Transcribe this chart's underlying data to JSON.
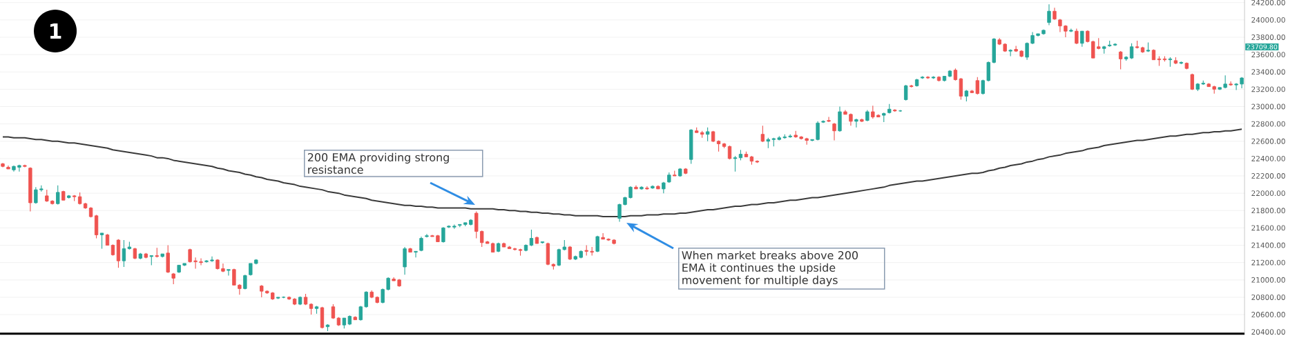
{
  "chart_data": {
    "type": "candlestick",
    "categories": [
      null,
      null,
      null,
      null,
      null,
      null,
      null,
      null,
      null,
      null,
      null,
      null,
      null,
      null,
      null,
      null,
      null,
      null,
      null,
      null,
      null,
      null,
      null,
      null,
      null,
      null,
      null,
      null,
      null,
      null,
      null,
      null,
      null,
      null,
      null,
      null,
      null,
      null,
      null,
      null,
      null,
      null,
      null,
      null,
      null,
      null,
      null,
      null,
      null,
      null,
      null,
      null,
      null,
      null,
      null,
      null,
      null,
      null,
      null,
      null,
      null,
      null,
      null,
      null,
      null,
      null,
      null,
      null,
      null,
      null,
      null,
      null,
      null,
      null,
      null,
      null,
      null,
      null,
      null,
      null,
      null,
      null,
      null,
      null,
      null,
      null,
      null,
      null,
      null,
      null,
      null,
      null,
      null,
      null,
      null,
      null,
      null,
      null,
      null,
      null,
      null,
      null,
      null,
      null,
      null,
      null,
      null,
      null,
      null,
      null,
      null,
      null,
      null,
      null,
      null,
      null,
      null,
      null,
      null,
      null,
      null,
      null,
      null,
      null,
      null,
      null,
      null,
      null,
      null,
      null,
      null,
      null,
      null,
      null,
      null,
      null,
      null,
      null,
      null,
      null,
      null,
      null,
      null,
      null,
      null,
      null,
      null,
      null,
      null,
      null,
      null,
      null,
      null,
      null,
      null,
      null,
      null,
      null,
      null,
      null,
      null,
      null,
      null,
      null,
      null,
      null,
      null,
      null,
      null,
      null,
      null,
      null,
      null,
      null,
      null,
      null,
      null,
      null,
      null,
      null,
      null,
      null,
      null,
      null,
      null,
      null,
      null,
      null,
      null,
      null,
      null,
      null,
      null,
      null,
      null,
      null,
      null,
      null,
      null,
      null,
      null,
      null,
      null,
      null,
      null,
      null,
      null,
      null,
      null,
      null,
      null,
      null,
      null,
      null,
      null,
      null,
      null,
      null,
      null,
      null,
      null,
      null,
      null,
      null,
      null,
      null
    ],
    "ohlc": [
      [
        22340,
        22350,
        22300,
        22310
      ],
      [
        22300,
        22320,
        22280,
        22280
      ],
      [
        22270,
        22320,
        22250,
        22310
      ],
      [
        22300,
        22330,
        22250,
        22320
      ],
      [
        22320,
        22330,
        22300,
        22310
      ],
      [
        22290,
        22300,
        21790,
        21890
      ],
      [
        21890,
        22070,
        21880,
        22040
      ],
      [
        22040,
        22090,
        22020,
        22050
      ],
      [
        21970,
        22040,
        21900,
        21910
      ],
      [
        21910,
        21920,
        21870,
        21880
      ],
      [
        21880,
        22090,
        21870,
        22010
      ],
      [
        22020,
        22030,
        21920,
        21920
      ],
      [
        21950,
        21980,
        21940,
        21970
      ],
      [
        21970,
        21980,
        21910,
        21960
      ],
      [
        21960,
        22010,
        21870,
        21880
      ],
      [
        21880,
        21890,
        21820,
        21830
      ],
      [
        21830,
        21840,
        21720,
        21730
      ],
      [
        21740,
        21750,
        21480,
        21520
      ],
      [
        21520,
        21540,
        21360,
        21540
      ],
      [
        21520,
        21530,
        21400,
        21400
      ],
      [
        21400,
        21410,
        21280,
        21290
      ],
      [
        21460,
        21470,
        21140,
        21220
      ],
      [
        21220,
        21460,
        21150,
        21360
      ],
      [
        21360,
        21440,
        21350,
        21380
      ],
      [
        21360,
        21370,
        21240,
        21250
      ],
      [
        21250,
        21310,
        21240,
        21300
      ],
      [
        21300,
        21310,
        21250,
        21260
      ],
      [
        21270,
        21280,
        21170,
        21280
      ],
      [
        21280,
        21370,
        21260,
        21270
      ],
      [
        21270,
        21300,
        21260,
        21300
      ],
      [
        21310,
        21400,
        21080,
        21090
      ],
      [
        21070,
        21080,
        20950,
        21020
      ],
      [
        21090,
        21170,
        21080,
        21170
      ],
      [
        21170,
        21190,
        21160,
        21190
      ],
      [
        21350,
        21360,
        21200,
        21210
      ],
      [
        21220,
        21260,
        21130,
        21210
      ],
      [
        21210,
        21250,
        21170,
        21200
      ],
      [
        21210,
        21230,
        21200,
        21220
      ],
      [
        21220,
        21270,
        21210,
        21230
      ],
      [
        21230,
        21240,
        21120,
        21130
      ],
      [
        21130,
        21190,
        21090,
        21100
      ],
      [
        21110,
        21120,
        21050,
        21120
      ],
      [
        21120,
        21130,
        20940,
        20940
      ],
      [
        20940,
        20950,
        20830,
        20900
      ],
      [
        20900,
        21060,
        20890,
        21050
      ],
      [
        21060,
        21190,
        21050,
        21190
      ],
      [
        21190,
        21240,
        21180,
        21230
      ],
      [
        20930,
        20940,
        20800,
        20870
      ],
      [
        20870,
        20880,
        20840,
        20850
      ],
      [
        20850,
        20860,
        20770,
        20780
      ],
      [
        20790,
        20800,
        20780,
        20800
      ],
      [
        20800,
        20810,
        20790,
        20800
      ],
      [
        20800,
        20810,
        20770,
        20780
      ],
      [
        20780,
        20790,
        20710,
        20720
      ],
      [
        20720,
        20810,
        20710,
        20800
      ],
      [
        20800,
        20840,
        20710,
        20720
      ],
      [
        20720,
        20730,
        20600,
        20670
      ],
      [
        20670,
        20700,
        20610,
        20690
      ],
      [
        20680,
        20690,
        20440,
        20450
      ],
      [
        20460,
        20490,
        20410,
        20480
      ],
      [
        20690,
        20720,
        20550,
        20560
      ],
      [
        20560,
        20570,
        20470,
        20480
      ],
      [
        20480,
        20560,
        20440,
        20560
      ],
      [
        20490,
        20590,
        20480,
        20580
      ],
      [
        20570,
        20580,
        20540,
        20540
      ],
      [
        20540,
        20700,
        20530,
        20690
      ],
      [
        20690,
        20870,
        20680,
        20860
      ],
      [
        20860,
        20880,
        20790,
        20800
      ],
      [
        20800,
        20810,
        20730,
        20740
      ],
      [
        20740,
        20900,
        20730,
        20890
      ],
      [
        20890,
        21030,
        20880,
        21020
      ],
      [
        21010,
        21030,
        20990,
        20990
      ],
      [
        21000,
        21010,
        20920,
        20930
      ],
      [
        21150,
        21380,
        21060,
        21360
      ],
      [
        21360,
        21370,
        21320,
        21320
      ],
      [
        21320,
        21330,
        21260,
        21330
      ],
      [
        21340,
        21500,
        21330,
        21480
      ],
      [
        21500,
        21530,
        21490,
        21510
      ],
      [
        21510,
        21520,
        21500,
        21500
      ],
      [
        21510,
        21520,
        21440,
        21440
      ],
      [
        21440,
        21610,
        21430,
        21600
      ],
      [
        21610,
        21630,
        21600,
        21620
      ],
      [
        21610,
        21640,
        21590,
        21620
      ],
      [
        21630,
        21640,
        21610,
        21640
      ],
      [
        21640,
        21660,
        21620,
        21660
      ],
      [
        21640,
        21700,
        21630,
        21690
      ],
      [
        21770,
        21790,
        21480,
        21560
      ],
      [
        21560,
        21570,
        21380,
        21430
      ],
      [
        21440,
        21450,
        21420,
        21420
      ],
      [
        21420,
        21430,
        21320,
        21320
      ],
      [
        21330,
        21430,
        21320,
        21420
      ],
      [
        21420,
        21430,
        21380,
        21380
      ],
      [
        21380,
        21390,
        21360,
        21360
      ],
      [
        21360,
        21370,
        21340,
        21350
      ],
      [
        21350,
        21360,
        21280,
        21340
      ],
      [
        21340,
        21410,
        21330,
        21400
      ],
      [
        21400,
        21580,
        21390,
        21480
      ],
      [
        21490,
        21500,
        21420,
        21420
      ],
      [
        21430,
        21440,
        21420,
        21440
      ],
      [
        21420,
        21430,
        21170,
        21180
      ],
      [
        21180,
        21190,
        21120,
        21160
      ],
      [
        21170,
        21360,
        21160,
        21350
      ],
      [
        21350,
        21460,
        21340,
        21380
      ],
      [
        21380,
        21390,
        21230,
        21240
      ],
      [
        21240,
        21280,
        21230,
        21270
      ],
      [
        21260,
        21340,
        21250,
        21330
      ],
      [
        21340,
        21400,
        21280,
        21330
      ],
      [
        21330,
        21380,
        21280,
        21320
      ],
      [
        21330,
        21510,
        21320,
        21500
      ],
      [
        21490,
        21540,
        21470,
        21470
      ],
      [
        21470,
        21480,
        21450,
        21460
      ],
      [
        21460,
        21470,
        21410,
        21420
      ],
      [
        21710,
        21880,
        21670,
        21870
      ],
      [
        21870,
        21960,
        21860,
        21950
      ],
      [
        21950,
        22080,
        21940,
        22070
      ],
      [
        22070,
        22090,
        22050,
        22050
      ],
      [
        22050,
        22080,
        22040,
        22070
      ],
      [
        22060,
        22080,
        22040,
        22050
      ],
      [
        22060,
        22090,
        22050,
        22080
      ],
      [
        22080,
        22090,
        22050,
        22050
      ],
      [
        22050,
        22130,
        22000,
        22120
      ],
      [
        22130,
        22240,
        22120,
        22210
      ],
      [
        22210,
        22260,
        22200,
        22200
      ],
      [
        22200,
        22290,
        22190,
        22280
      ],
      [
        22280,
        22290,
        22220,
        22230
      ],
      [
        22390,
        22740,
        22340,
        22730
      ],
      [
        22720,
        22760,
        22700,
        22700
      ],
      [
        22700,
        22720,
        22640,
        22680
      ],
      [
        22680,
        22760,
        22600,
        22710
      ],
      [
        22710,
        22720,
        22590,
        22600
      ],
      [
        22600,
        22610,
        22480,
        22570
      ],
      [
        22570,
        22580,
        22520,
        22540
      ],
      [
        22540,
        22550,
        22390,
        22400
      ],
      [
        22400,
        22430,
        22250,
        22410
      ],
      [
        22410,
        22500,
        22380,
        22450
      ],
      [
        22450,
        22480,
        22420,
        22420
      ],
      [
        22420,
        22430,
        22330,
        22370
      ],
      [
        22370,
        22380,
        22350,
        22360
      ],
      [
        22680,
        22780,
        22590,
        22600
      ],
      [
        22600,
        22640,
        22520,
        22620
      ],
      [
        22620,
        22640,
        22540,
        22630
      ],
      [
        22620,
        22660,
        22610,
        22640
      ],
      [
        22640,
        22680,
        22630,
        22650
      ],
      [
        22650,
        22680,
        22640,
        22660
      ],
      [
        22670,
        22720,
        22640,
        22650
      ],
      [
        22650,
        22660,
        22620,
        22630
      ],
      [
        22630,
        22640,
        22560,
        22610
      ],
      [
        22610,
        22620,
        22600,
        22620
      ],
      [
        22620,
        22830,
        22610,
        22810
      ],
      [
        22820,
        22840,
        22810,
        22830
      ],
      [
        22840,
        22880,
        22820,
        22830
      ],
      [
        22800,
        22810,
        22610,
        22720
      ],
      [
        22720,
        23000,
        22710,
        22940
      ],
      [
        22940,
        22960,
        22910,
        22910
      ],
      [
        22910,
        22920,
        22780,
        22830
      ],
      [
        22830,
        22860,
        22760,
        22850
      ],
      [
        22850,
        22860,
        22820,
        22830
      ],
      [
        22840,
        22960,
        22830,
        22940
      ],
      [
        22940,
        23010,
        22860,
        22880
      ],
      [
        22900,
        22910,
        22880,
        22880
      ],
      [
        22900,
        22930,
        22820,
        22920
      ],
      [
        22930,
        23030,
        22920,
        22970
      ],
      [
        22960,
        22970,
        22940,
        22950
      ],
      [
        22950,
        22960,
        22940,
        22950
      ],
      [
        23080,
        23250,
        23070,
        23240
      ],
      [
        23240,
        23250,
        23220,
        23230
      ],
      [
        23240,
        23320,
        23230,
        23310
      ],
      [
        23330,
        23350,
        23320,
        23340
      ],
      [
        23340,
        23350,
        23320,
        23330
      ],
      [
        23330,
        23350,
        23320,
        23340
      ],
      [
        23340,
        23350,
        23290,
        23300
      ],
      [
        23300,
        23350,
        23290,
        23350
      ],
      [
        23350,
        23420,
        23340,
        23410
      ],
      [
        23420,
        23440,
        23300,
        23310
      ],
      [
        23320,
        23330,
        23080,
        23120
      ],
      [
        23120,
        23190,
        23060,
        23180
      ],
      [
        23180,
        23190,
        23160,
        23160
      ],
      [
        23300,
        23340,
        23140,
        23150
      ],
      [
        23150,
        23310,
        23140,
        23300
      ],
      [
        23300,
        23520,
        23290,
        23510
      ],
      [
        23510,
        23790,
        23500,
        23780
      ],
      [
        23770,
        23790,
        23710,
        23720
      ],
      [
        23720,
        23730,
        23630,
        23640
      ],
      [
        23640,
        23660,
        23580,
        23650
      ],
      [
        23660,
        23700,
        23630,
        23640
      ],
      [
        23640,
        23650,
        23570,
        23580
      ],
      [
        23570,
        23740,
        23540,
        23730
      ],
      [
        23730,
        23860,
        23720,
        23820
      ],
      [
        23820,
        23840,
        23810,
        23840
      ],
      [
        23840,
        23890,
        23830,
        23880
      ],
      [
        23970,
        24180,
        23940,
        24100
      ],
      [
        24100,
        24140,
        24000,
        24010
      ],
      [
        24000,
        24010,
        23860,
        23930
      ],
      [
        23930,
        23940,
        23800,
        23870
      ],
      [
        23870,
        23900,
        23860,
        23880
      ],
      [
        23870,
        23900,
        23720,
        23730
      ],
      [
        23730,
        23870,
        23690,
        23870
      ],
      [
        23870,
        23880,
        23740,
        23750
      ],
      [
        23750,
        23760,
        23560,
        23560
      ],
      [
        23690,
        23790,
        23660,
        23670
      ],
      [
        23670,
        23700,
        23610,
        23690
      ],
      [
        23700,
        23760,
        23690,
        23710
      ],
      [
        23710,
        23730,
        23700,
        23720
      ],
      [
        23630,
        23640,
        23430,
        23550
      ],
      [
        23550,
        23580,
        23530,
        23570
      ],
      [
        23560,
        23730,
        23550,
        23690
      ],
      [
        23690,
        23760,
        23670,
        23680
      ],
      [
        23680,
        23690,
        23620,
        23630
      ],
      [
        23640,
        23740,
        23630,
        23650
      ],
      [
        23650,
        23660,
        23540,
        23540
      ],
      [
        23550,
        23580,
        23470,
        23540
      ],
      [
        23550,
        23580,
        23520,
        23540
      ],
      [
        23540,
        23570,
        23460,
        23550
      ],
      [
        23530,
        23570,
        23490,
        23500
      ],
      [
        23500,
        23520,
        23490,
        23510
      ],
      [
        23500,
        23510,
        23430,
        23440
      ],
      [
        23370,
        23380,
        23190,
        23200
      ],
      [
        23200,
        23270,
        23180,
        23260
      ],
      [
        23260,
        23300,
        23250,
        23270
      ],
      [
        23260,
        23270,
        23230,
        23230
      ],
      [
        23230,
        23240,
        23150,
        23200
      ],
      [
        23200,
        23220,
        23190,
        23220
      ],
      [
        23220,
        23360,
        23210,
        23260
      ],
      [
        23260,
        23290,
        23240,
        23250
      ],
      [
        23250,
        23270,
        23190,
        23260
      ],
      [
        23260,
        23340,
        23210,
        23330
      ]
    ],
    "colors": [
      "#ef5350",
      "#ef5350",
      "#26a69a",
      "#26a69a",
      "#ef5350",
      "#ef5350",
      "#26a69a",
      "#26a69a",
      "#ef5350",
      "#ef5350",
      "#26a69a",
      "#ef5350",
      "#26a69a",
      "#ef5350",
      "#ef5350",
      "#ef5350",
      "#ef5350",
      "#ef5350",
      "#26a69a",
      "#ef5350",
      "#ef5350",
      "#ef5350",
      "#26a69a",
      "#26a69a",
      "#ef5350",
      "#26a69a",
      "#ef5350",
      "#26a69a",
      "#ef5350",
      "#26a69a",
      "#ef5350",
      "#ef5350",
      "#26a69a",
      "#26a69a",
      "#ef5350",
      "#ef5350",
      "#ef5350",
      "#26a69a",
      "#26a69a",
      "#ef5350",
      "#ef5350",
      "#26a69a",
      "#ef5350",
      "#ef5350",
      "#26a69a",
      "#26a69a",
      "#26a69a",
      "#ef5350",
      "#ef5350",
      "#ef5350",
      "#26a69a",
      "#26a69a",
      "#ef5350",
      "#ef5350",
      "#26a69a",
      "#ef5350",
      "#ef5350",
      "#26a69a",
      "#ef5350",
      "#26a69a",
      "#ef5350",
      "#ef5350",
      "#26a69a",
      "#26a69a",
      "#ef5350",
      "#26a69a",
      "#26a69a",
      "#ef5350",
      "#ef5350",
      "#26a69a",
      "#26a69a",
      "#ef5350",
      "#ef5350",
      "#26a69a",
      "#ef5350",
      "#26a69a",
      "#26a69a",
      "#26a69a",
      "#ef5350",
      "#ef5350",
      "#26a69a",
      "#26a69a",
      "#26a69a",
      "#26a69a",
      "#26a69a",
      "#26a69a",
      "#ef5350",
      "#ef5350",
      "#ef5350",
      "#ef5350",
      "#26a69a",
      "#ef5350",
      "#ef5350",
      "#ef5350",
      "#ef5350",
      "#26a69a",
      "#26a69a",
      "#ef5350",
      "#26a69a",
      "#ef5350",
      "#ef5350",
      "#26a69a",
      "#26a69a",
      "#ef5350",
      "#26a69a",
      "#26a69a",
      "#ef5350",
      "#ef5350",
      "#26a69a",
      "#ef5350",
      "#ef5350",
      "#ef5350",
      "#26a69a",
      "#26a69a",
      "#26a69a",
      "#ef5350",
      "#26a69a",
      "#ef5350",
      "#26a69a",
      "#ef5350",
      "#26a69a",
      "#26a69a",
      "#ef5350",
      "#26a69a",
      "#ef5350",
      "#26a69a",
      "#ef5350",
      "#ef5350",
      "#26a69a",
      "#ef5350",
      "#ef5350",
      "#ef5350",
      "#ef5350",
      "#26a69a",
      "#26a69a",
      "#ef5350",
      "#ef5350",
      "#ef5350",
      "#ef5350",
      "#26a69a",
      "#26a69a",
      "#26a69a",
      "#26a69a",
      "#26a69a",
      "#ef5350",
      "#ef5350",
      "#ef5350",
      "#26a69a",
      "#26a69a",
      "#26a69a",
      "#ef5350",
      "#ef5350",
      "#26a69a",
      "#ef5350",
      "#ef5350",
      "#26a69a",
      "#ef5350",
      "#26a69a",
      "#ef5350",
      "#ef5350",
      "#26a69a",
      "#26a69a",
      "#ef5350",
      "#26a69a",
      "#26a69a",
      "#ef5350",
      "#26a69a",
      "#26a69a",
      "#ef5350",
      "#26a69a",
      "#ef5350",
      "#26a69a",
      "#26a69a",
      "#ef5350",
      "#ef5350",
      "#26a69a",
      "#ef5350",
      "#ef5350",
      "#26a69a",
      "#26a69a",
      "#26a69a",
      "#ef5350",
      "#ef5350",
      "#26a69a",
      "#ef5350",
      "#ef5350",
      "#26a69a",
      "#26a69a",
      "#26a69a",
      "#26a69a",
      "#26a69a",
      "#ef5350",
      "#ef5350",
      "#ef5350",
      "#26a69a",
      "#ef5350",
      "#26a69a",
      "#ef5350",
      "#ef5350",
      "#ef5350",
      "#26a69a",
      "#26a69a",
      "#26a69a",
      "#ef5350",
      "#26a69a",
      "#26a69a",
      "#ef5350",
      "#ef5350",
      "#26a69a",
      "#ef5350",
      "#ef5350",
      "#ef5350",
      "#26a69a",
      "#ef5350",
      "#26a69a",
      "#ef5350",
      "#ef5350",
      "#26a69a",
      "#26a69a",
      "#ef5350",
      "#ef5350",
      "#26a69a",
      "#26a69a",
      "#ef5350",
      "#26a69a",
      "#26a69a"
    ],
    "series": [
      {
        "type": "line",
        "color": "#3a3a3a",
        "values": [
          22650,
          22650,
          22640,
          22640,
          22640,
          22630,
          22620,
          22620,
          22610,
          22600,
          22600,
          22590,
          22580,
          22580,
          22570,
          22560,
          22550,
          22540,
          22530,
          22520,
          22500,
          22490,
          22480,
          22470,
          22460,
          22450,
          22440,
          22430,
          22410,
          22410,
          22400,
          22380,
          22370,
          22360,
          22350,
          22340,
          22330,
          22320,
          22310,
          22290,
          22280,
          22260,
          22250,
          22240,
          22220,
          22210,
          22190,
          22180,
          22160,
          22150,
          22140,
          22120,
          22110,
          22100,
          22080,
          22070,
          22060,
          22050,
          22040,
          22020,
          22010,
          22000,
          21980,
          21970,
          21960,
          21950,
          21940,
          21920,
          21910,
          21900,
          21890,
          21880,
          21870,
          21860,
          21860,
          21850,
          21850,
          21840,
          21840,
          21830,
          21830,
          21830,
          21830,
          21830,
          21830,
          21820,
          21820,
          21820,
          21820,
          21820,
          21810,
          21810,
          21800,
          21800,
          21790,
          21790,
          21780,
          21780,
          21770,
          21770,
          21760,
          21760,
          21750,
          21750,
          21740,
          21740,
          21740,
          21740,
          21740,
          21730,
          21730,
          21730,
          21730,
          21730,
          21740,
          21740,
          21740,
          21750,
          21750,
          21750,
          21760,
          21760,
          21760,
          21770,
          21770,
          21780,
          21790,
          21800,
          21810,
          21810,
          21820,
          21830,
          21840,
          21850,
          21850,
          21860,
          21870,
          21870,
          21880,
          21890,
          21890,
          21900,
          21910,
          21920,
          21920,
          21930,
          21940,
          21950,
          21950,
          21960,
          21970,
          21980,
          21990,
          22000,
          22010,
          22020,
          22030,
          22040,
          22050,
          22060,
          22070,
          22090,
          22100,
          22110,
          22120,
          22130,
          22140,
          22140,
          22150,
          22160,
          22170,
          22180,
          22190,
          22200,
          22210,
          22220,
          22230,
          22230,
          22240,
          22260,
          22270,
          22290,
          22300,
          22320,
          22330,
          22340,
          22360,
          22370,
          22390,
          22400,
          22420,
          22430,
          22440,
          22460,
          22470,
          22480,
          22490,
          22510,
          22520,
          22530,
          22550,
          22560,
          22570,
          22580,
          22590,
          22600,
          22610,
          22610,
          22620,
          22630,
          22640,
          22650,
          22660,
          22660,
          22670,
          22680,
          22680,
          22690,
          22700,
          22700,
          22710,
          22710,
          22720,
          22720,
          22730,
          22740
        ]
      }
    ],
    "ylim": [
      20380,
      24240
    ],
    "yticks": [
      {
        "value": 20400,
        "label": "20400.00"
      },
      {
        "value": 20600,
        "label": "20600.00"
      },
      {
        "value": 20800,
        "label": "20800.00"
      },
      {
        "value": 21000,
        "label": "21000.00"
      },
      {
        "value": 21200,
        "label": "21200.00"
      },
      {
        "value": 21400,
        "label": "21400.00"
      },
      {
        "value": 21600,
        "label": "21600.00"
      },
      {
        "value": 21800,
        "label": "21800.00"
      },
      {
        "value": 22000,
        "label": "22000.00"
      },
      {
        "value": 22200,
        "label": "22200.00"
      },
      {
        "value": 22400,
        "label": "22400.00"
      },
      {
        "value": 22600,
        "label": "22600.00"
      },
      {
        "value": 22800,
        "label": "22800.00"
      },
      {
        "value": 23000,
        "label": "23000.00"
      },
      {
        "value": 23200,
        "label": "23200.00"
      },
      {
        "value": 23400,
        "label": "23400.00"
      },
      {
        "value": 23600,
        "label": "23600.00"
      },
      {
        "value": 23800,
        "label": "23800.00"
      },
      {
        "value": 24000,
        "label": "24000.00"
      },
      {
        "value": 24200,
        "label": "24200.00"
      }
    ],
    "grid": "y",
    "annotations": [
      "1",
      "200 EMA providing strong resistance",
      "When market breaks above 200 EMA it continues the upside movement for multiple days",
      "23709.80"
    ]
  }
}
